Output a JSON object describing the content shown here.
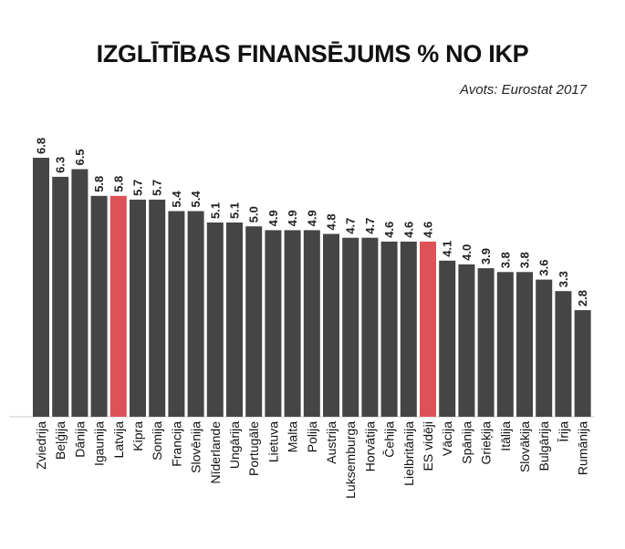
{
  "title": "IZGLĪTĪBAS FINANSĒJUMS % NO IKP",
  "source": "Avots: Eurostat 2017",
  "colors": {
    "bar": "#454545",
    "highlight": "#dd5157",
    "baseline": "#cccccc"
  },
  "chart_data": {
    "type": "bar",
    "title": "IZGLĪTĪBAS FINANSĒJUMS % NO IKP",
    "xlabel": "",
    "ylabel": "",
    "ylim": [
      0,
      6.8
    ],
    "grid": false,
    "legend": "none",
    "categories": [
      "Zviedrija",
      "Beļģija",
      "Dānija",
      "Igaunija",
      "Latvija",
      "Kipra",
      "Somija",
      "Francija",
      "Slovēnija",
      "Nīderlande",
      "Ungārija",
      "Portugāle",
      "Lietuva",
      "Malta",
      "Polija",
      "Austrija",
      "Luksemburga",
      "Horvātija",
      "Čehija",
      "Lielbritānija",
      "ES vidēji",
      "Vācija",
      "Spānija",
      "Grieķija",
      "Itālija",
      "Slovākija",
      "Bulgārija",
      "Īrija",
      "Rumānija"
    ],
    "values": [
      6.8,
      6.3,
      6.5,
      5.8,
      5.8,
      5.7,
      5.7,
      5.4,
      5.4,
      5.1,
      5.1,
      5.0,
      4.9,
      4.9,
      4.9,
      4.8,
      4.7,
      4.7,
      4.6,
      4.6,
      4.6,
      4.1,
      4.0,
      3.9,
      3.8,
      3.8,
      3.6,
      3.3,
      2.8
    ],
    "value_labels": [
      "6.8",
      "6.3",
      "6.5",
      "5.8",
      "5.8",
      "5.7",
      "5.7",
      "5.4",
      "5.4",
      "5.1",
      "5.1",
      "5.0",
      "4.9",
      "4.9",
      "4.9",
      "4.8",
      "4.7",
      "4.7",
      "4.6",
      "4.6",
      "4.6",
      "4.1",
      "4.0",
      "3.9",
      "3.8",
      "3.8",
      "3.6",
      "3.3",
      "2.8"
    ],
    "highlighted": [
      "Latvija",
      "ES vidēji"
    ]
  }
}
